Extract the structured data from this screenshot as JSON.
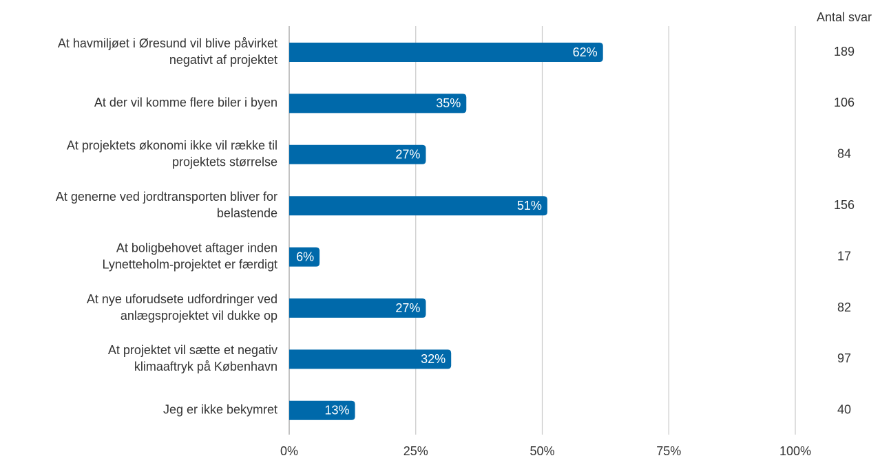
{
  "chart_data": {
    "type": "hbar",
    "categories": [
      [
        "At havmiljøet i Øresund vil blive påvirket",
        "negativt af projektet"
      ],
      [
        "At der vil komme flere biler i byen"
      ],
      [
        "At projektets økonomi ikke vil række til",
        "projektets størrelse"
      ],
      [
        "At generne ved jordtransporten bliver for",
        "belastende"
      ],
      [
        "At boligbehovet aftager inden",
        "Lynetteholm-projektet er færdigt"
      ],
      [
        "At nye uforudsete udfordringer ved",
        "anlægsprojektet vil dukke op"
      ],
      [
        "At projektet vil sætte et negativ",
        "klimaaftryk på København"
      ],
      [
        "Jeg er ikke bekymret"
      ]
    ],
    "values": [
      62,
      35,
      27,
      51,
      6,
      27,
      32,
      13
    ],
    "value_labels": [
      "62%",
      "35%",
      "27%",
      "51%",
      "6%",
      "27%",
      "32%",
      "13%"
    ],
    "color": "#0069aa",
    "xlim": [
      0,
      100
    ],
    "xticks": [
      {
        "value": 0,
        "label": "0%"
      },
      {
        "value": 25,
        "label": "25%"
      },
      {
        "value": 50,
        "label": "50%"
      },
      {
        "value": 75,
        "label": "75%"
      },
      {
        "value": 100,
        "label": "100%"
      }
    ],
    "grid": true,
    "counts": {
      "title": "Antal svar",
      "values": [
        189,
        106,
        84,
        156,
        17,
        82,
        97,
        40
      ]
    }
  }
}
